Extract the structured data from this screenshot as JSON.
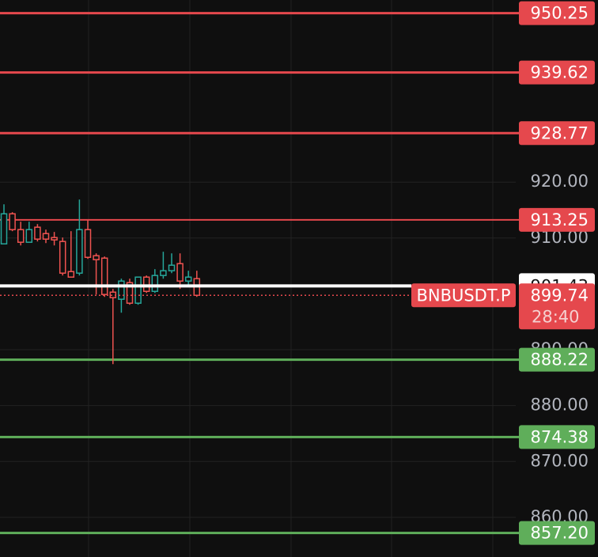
{
  "chart_data": {
    "type": "candlestick",
    "categories": [
      null,
      null,
      null,
      null,
      null,
      null,
      null,
      null,
      null,
      null,
      null,
      null,
      null,
      null,
      null,
      null,
      null,
      null,
      null,
      null,
      null,
      null,
      null,
      null
    ],
    "open": [
      908.95,
      914.33,
      911.5,
      909.24,
      911.93,
      910.79,
      910.08,
      909.38,
      903.99,
      903.71,
      911.5,
      906.83,
      906.4,
      900.31,
      899.04,
      902.01,
      898.33,
      903.0,
      900.45,
      903.29,
      904.14,
      905.41,
      902.29,
      902.72
    ],
    "high": [
      916.03,
      914.62,
      912.92,
      912.92,
      912.49,
      911.5,
      911.08,
      910.08,
      911.22,
      916.88,
      913.2,
      907.25,
      906.69,
      900.88,
      902.72,
      902.72,
      903.0,
      903.29,
      904.42,
      907.54,
      907.25,
      907.25,
      904.14,
      904.14
    ],
    "low": [
      908.95,
      911.22,
      908.67,
      909.24,
      909.38,
      909.09,
      908.67,
      903.29,
      903.0,
      903.29,
      906.26,
      899.89,
      899.46,
      887.42,
      896.63,
      898.05,
      898.05,
      900.17,
      900.17,
      902.72,
      903.71,
      900.88,
      901.3,
      899.46
    ],
    "close": [
      914.33,
      911.5,
      909.24,
      911.5,
      909.8,
      909.8,
      909.66,
      903.71,
      903.0,
      911.5,
      906.54,
      906.12,
      899.89,
      899.32,
      902.29,
      898.33,
      903.0,
      900.45,
      903.29,
      904.14,
      905.13,
      902.29,
      903.0,
      899.74
    ],
    "up_color": "#26a69a",
    "down_color": "#ef5350",
    "ylim": [
      852.9,
      952.6
    ],
    "yticks": [
      {
        "value": 920,
        "label": "920.00"
      },
      {
        "value": 910,
        "label": "910.00"
      },
      {
        "value": 890,
        "label": "890.00"
      },
      {
        "value": 880,
        "label": "880.00"
      },
      {
        "value": 870,
        "label": "870.00"
      },
      {
        "value": 860,
        "label": "860.00"
      }
    ],
    "grid": true,
    "levels": [
      {
        "value": 950.25,
        "label": "950.25",
        "color": "#e5484d"
      },
      {
        "value": 939.62,
        "label": "939.62",
        "color": "#e5484d"
      },
      {
        "value": 928.77,
        "label": "928.77",
        "color": "#e5484d"
      },
      {
        "value": 913.25,
        "label": "913.25",
        "color": "#e5484d"
      },
      {
        "value": 888.22,
        "label": "888.22",
        "color": "#5fae5a"
      },
      {
        "value": 874.38,
        "label": "874.38",
        "color": "#5fae5a"
      },
      {
        "value": 857.2,
        "label": "857.20",
        "color": "#5fae5a"
      }
    ],
    "marker_line": {
      "value": 901.43,
      "label": "901.43",
      "color": "#ffffff"
    },
    "last_price": {
      "value": 899.74,
      "label": "899.74",
      "symbol": "BNBUSDT.P",
      "countdown": "28:40",
      "color": "#e5484d"
    }
  }
}
